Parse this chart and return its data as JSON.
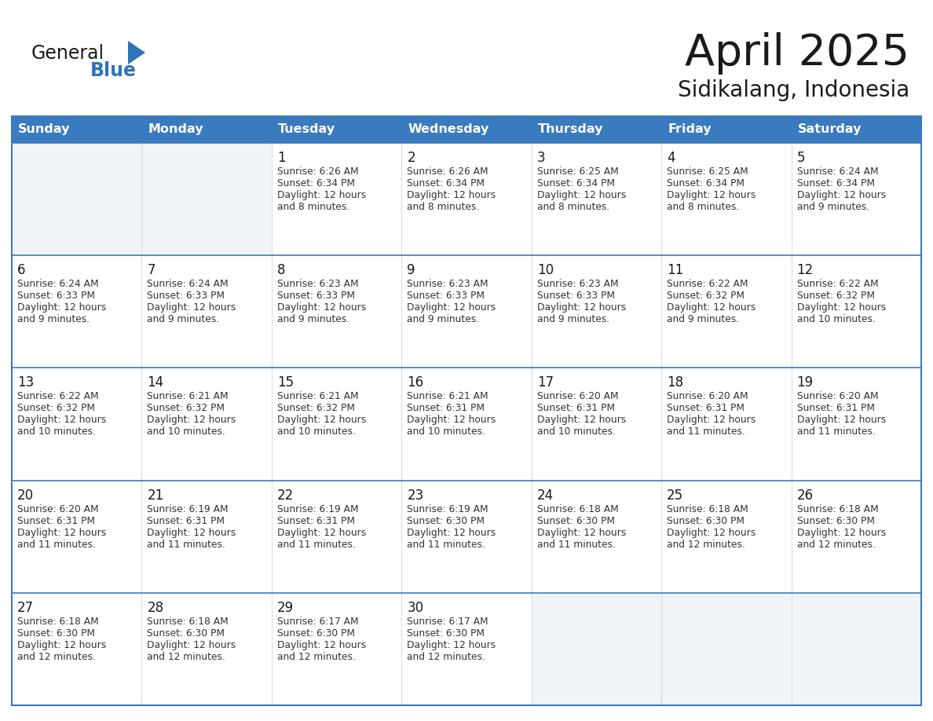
{
  "title": "April 2025",
  "subtitle": "Sidikalang, Indonesia",
  "header_bg": "#3a7abf",
  "header_text": "#ffffff",
  "cell_bg_white": "#ffffff",
  "cell_bg_empty": "#f0f4f8",
  "border_color": "#3a7abf",
  "row_divider_color": "#3a7abf",
  "days_of_week": [
    "Sunday",
    "Monday",
    "Tuesday",
    "Wednesday",
    "Thursday",
    "Friday",
    "Saturday"
  ],
  "logo_general_color": "#1a1a1a",
  "logo_blue_color": "#2e75b6",
  "title_color": "#1a1a1a",
  "subtitle_color": "#1a1a1a",
  "day_number_color": "#1a1a1a",
  "info_text_color": "#333333",
  "calendar_data": [
    [
      {
        "day": "",
        "info": ""
      },
      {
        "day": "",
        "info": ""
      },
      {
        "day": "1",
        "info": "Sunrise: 6:26 AM\nSunset: 6:34 PM\nDaylight: 12 hours\nand 8 minutes."
      },
      {
        "day": "2",
        "info": "Sunrise: 6:26 AM\nSunset: 6:34 PM\nDaylight: 12 hours\nand 8 minutes."
      },
      {
        "day": "3",
        "info": "Sunrise: 6:25 AM\nSunset: 6:34 PM\nDaylight: 12 hours\nand 8 minutes."
      },
      {
        "day": "4",
        "info": "Sunrise: 6:25 AM\nSunset: 6:34 PM\nDaylight: 12 hours\nand 8 minutes."
      },
      {
        "day": "5",
        "info": "Sunrise: 6:24 AM\nSunset: 6:34 PM\nDaylight: 12 hours\nand 9 minutes."
      }
    ],
    [
      {
        "day": "6",
        "info": "Sunrise: 6:24 AM\nSunset: 6:33 PM\nDaylight: 12 hours\nand 9 minutes."
      },
      {
        "day": "7",
        "info": "Sunrise: 6:24 AM\nSunset: 6:33 PM\nDaylight: 12 hours\nand 9 minutes."
      },
      {
        "day": "8",
        "info": "Sunrise: 6:23 AM\nSunset: 6:33 PM\nDaylight: 12 hours\nand 9 minutes."
      },
      {
        "day": "9",
        "info": "Sunrise: 6:23 AM\nSunset: 6:33 PM\nDaylight: 12 hours\nand 9 minutes."
      },
      {
        "day": "10",
        "info": "Sunrise: 6:23 AM\nSunset: 6:33 PM\nDaylight: 12 hours\nand 9 minutes."
      },
      {
        "day": "11",
        "info": "Sunrise: 6:22 AM\nSunset: 6:32 PM\nDaylight: 12 hours\nand 9 minutes."
      },
      {
        "day": "12",
        "info": "Sunrise: 6:22 AM\nSunset: 6:32 PM\nDaylight: 12 hours\nand 10 minutes."
      }
    ],
    [
      {
        "day": "13",
        "info": "Sunrise: 6:22 AM\nSunset: 6:32 PM\nDaylight: 12 hours\nand 10 minutes."
      },
      {
        "day": "14",
        "info": "Sunrise: 6:21 AM\nSunset: 6:32 PM\nDaylight: 12 hours\nand 10 minutes."
      },
      {
        "day": "15",
        "info": "Sunrise: 6:21 AM\nSunset: 6:32 PM\nDaylight: 12 hours\nand 10 minutes."
      },
      {
        "day": "16",
        "info": "Sunrise: 6:21 AM\nSunset: 6:31 PM\nDaylight: 12 hours\nand 10 minutes."
      },
      {
        "day": "17",
        "info": "Sunrise: 6:20 AM\nSunset: 6:31 PM\nDaylight: 12 hours\nand 10 minutes."
      },
      {
        "day": "18",
        "info": "Sunrise: 6:20 AM\nSunset: 6:31 PM\nDaylight: 12 hours\nand 11 minutes."
      },
      {
        "day": "19",
        "info": "Sunrise: 6:20 AM\nSunset: 6:31 PM\nDaylight: 12 hours\nand 11 minutes."
      }
    ],
    [
      {
        "day": "20",
        "info": "Sunrise: 6:20 AM\nSunset: 6:31 PM\nDaylight: 12 hours\nand 11 minutes."
      },
      {
        "day": "21",
        "info": "Sunrise: 6:19 AM\nSunset: 6:31 PM\nDaylight: 12 hours\nand 11 minutes."
      },
      {
        "day": "22",
        "info": "Sunrise: 6:19 AM\nSunset: 6:31 PM\nDaylight: 12 hours\nand 11 minutes."
      },
      {
        "day": "23",
        "info": "Sunrise: 6:19 AM\nSunset: 6:30 PM\nDaylight: 12 hours\nand 11 minutes."
      },
      {
        "day": "24",
        "info": "Sunrise: 6:18 AM\nSunset: 6:30 PM\nDaylight: 12 hours\nand 11 minutes."
      },
      {
        "day": "25",
        "info": "Sunrise: 6:18 AM\nSunset: 6:30 PM\nDaylight: 12 hours\nand 12 minutes."
      },
      {
        "day": "26",
        "info": "Sunrise: 6:18 AM\nSunset: 6:30 PM\nDaylight: 12 hours\nand 12 minutes."
      }
    ],
    [
      {
        "day": "27",
        "info": "Sunrise: 6:18 AM\nSunset: 6:30 PM\nDaylight: 12 hours\nand 12 minutes."
      },
      {
        "day": "28",
        "info": "Sunrise: 6:18 AM\nSunset: 6:30 PM\nDaylight: 12 hours\nand 12 minutes."
      },
      {
        "day": "29",
        "info": "Sunrise: 6:17 AM\nSunset: 6:30 PM\nDaylight: 12 hours\nand 12 minutes."
      },
      {
        "day": "30",
        "info": "Sunrise: 6:17 AM\nSunset: 6:30 PM\nDaylight: 12 hours\nand 12 minutes."
      },
      {
        "day": "",
        "info": ""
      },
      {
        "day": "",
        "info": ""
      },
      {
        "day": "",
        "info": ""
      }
    ]
  ]
}
